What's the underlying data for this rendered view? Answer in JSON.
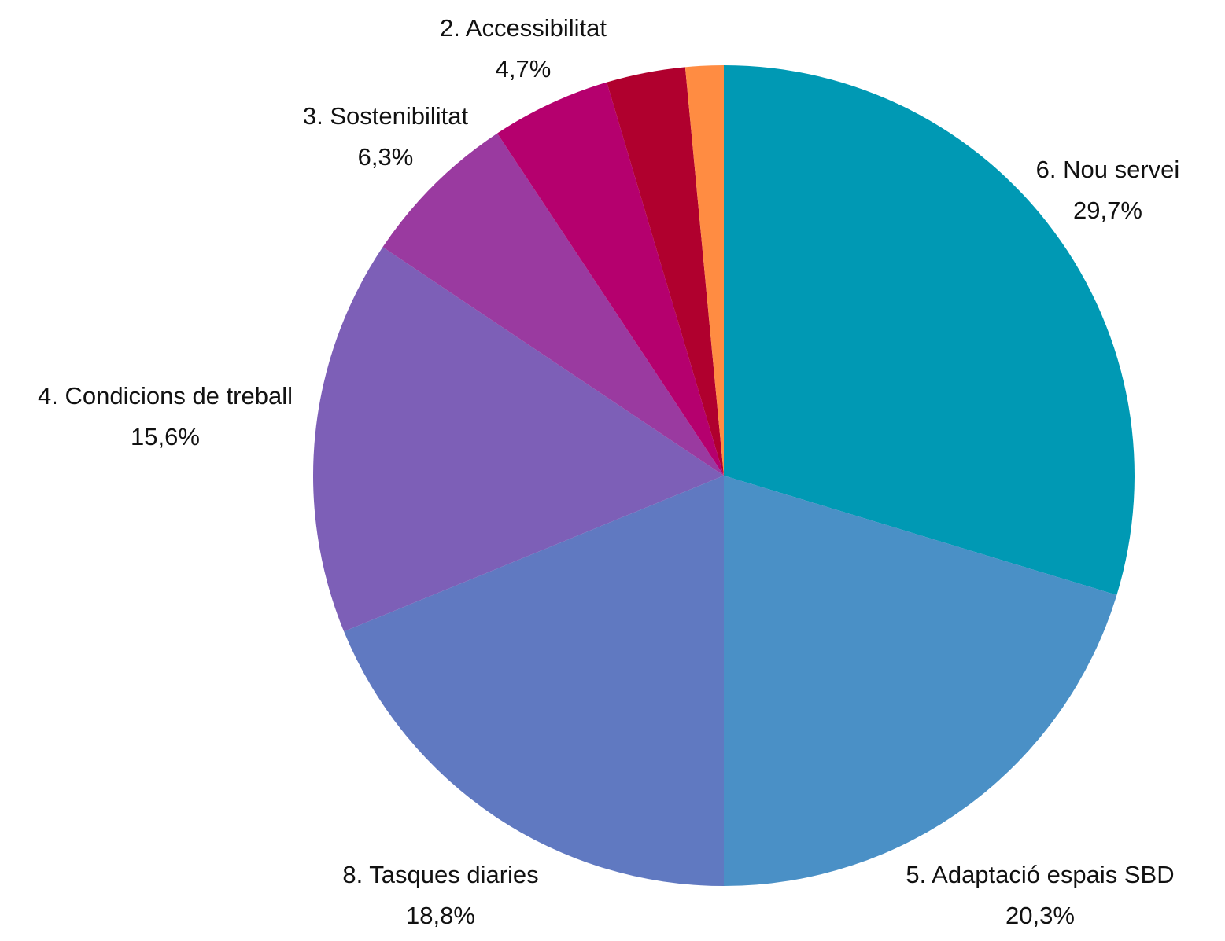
{
  "chart_data": {
    "type": "pie",
    "categories": [
      "6. Nou servei",
      "5. Adaptació espais SBD",
      "8. Tasques diaries",
      "4. Condicions de treball",
      "3. Sostenibilitat",
      "2. Accessibilitat",
      null,
      null
    ],
    "values": [
      29.7,
      20.3,
      18.8,
      15.6,
      6.3,
      4.7,
      3.1,
      1.5
    ],
    "value_labels": [
      "29,7%",
      "20,3%",
      "18,8%",
      "15,6%",
      "6,3%",
      "4,7%",
      null,
      null
    ],
    "colors": [
      "#0099b4",
      "#4a90c6",
      "#6079c1",
      "#7d5fb7",
      "#9a3aa0",
      "#b5006e",
      "#b0002e",
      "#ff8c42"
    ]
  }
}
